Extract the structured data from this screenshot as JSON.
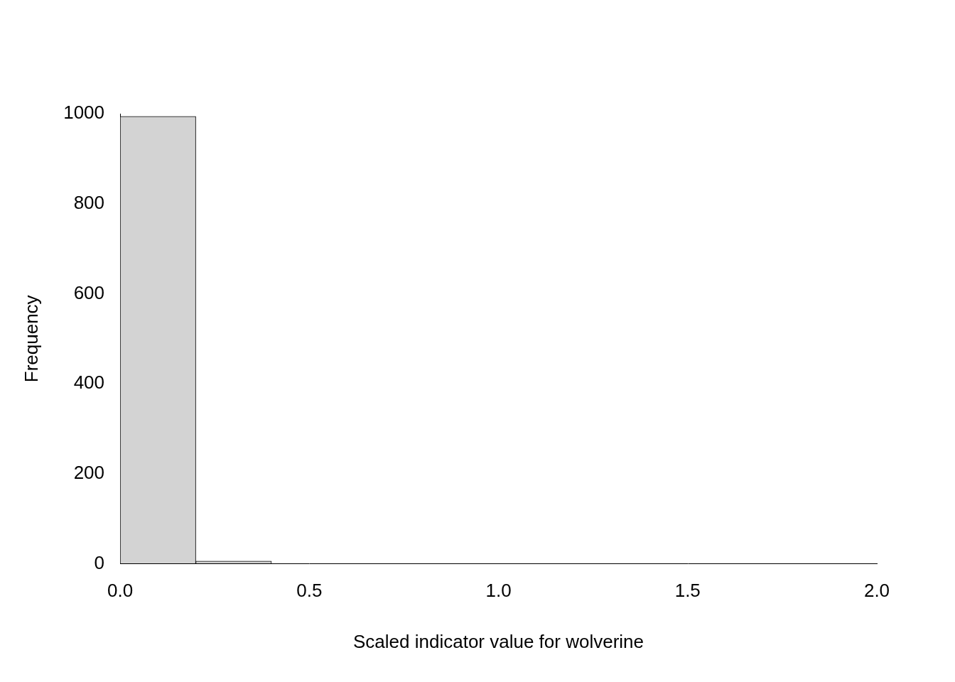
{
  "chart_data": {
    "type": "histogram",
    "x_label": "Scaled indicator value for wolverine",
    "y_label": "Frequency",
    "bins": [
      0,
      0.2,
      0.4,
      0.6,
      0.8,
      1.0,
      1.2,
      1.4,
      1.6,
      1.8,
      2.0
    ],
    "values": [
      994,
      6,
      0,
      0,
      0,
      0,
      0,
      0,
      0,
      0
    ],
    "color": "#d3d3d3",
    "xlim": [
      0,
      2
    ],
    "xticks": [
      {
        "value": 0,
        "label": "0.0"
      },
      {
        "value": 0.5,
        "label": "0.5"
      },
      {
        "value": 1,
        "label": "1.0"
      },
      {
        "value": 1.5,
        "label": "1.5"
      },
      {
        "value": 2,
        "label": "2.0"
      }
    ],
    "ylim": [
      0,
      1000
    ],
    "yticks": [
      0,
      200,
      400,
      600,
      800,
      1000
    ],
    "grid": false
  }
}
